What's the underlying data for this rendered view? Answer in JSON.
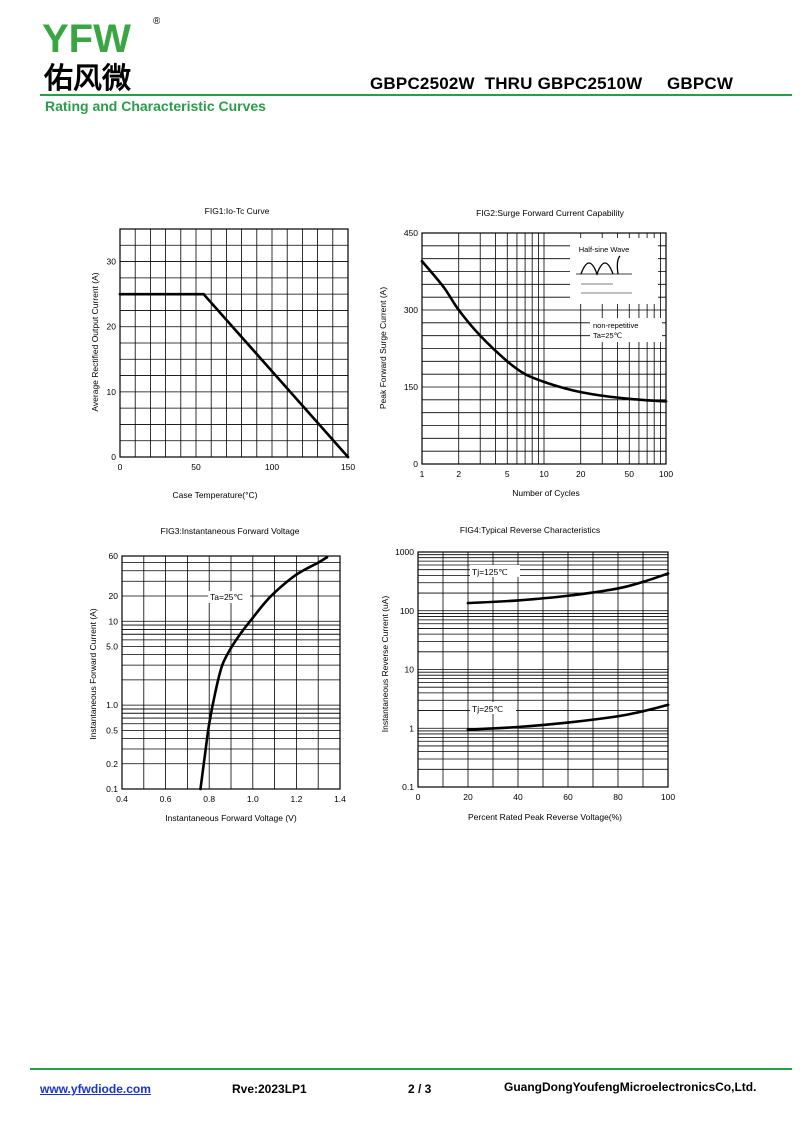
{
  "header": {
    "logo_latin": "YFW",
    "logo_chinese": "佑风微",
    "registered_mark": "®",
    "title": "GBPC2502W  THRU GBPC2510W     GBPCW",
    "section_title": "Rating and Characteristic Curves"
  },
  "colors": {
    "accent_green": "#2a9d4a",
    "logo_green": "#3aa641",
    "logo_orange": "#f39200",
    "link_blue": "#1a33cc",
    "grid": "#000000"
  },
  "figures": {
    "fig1": {
      "title": "FIG1:Io-Tc Curve",
      "xlabel": "Case Temperature(°C)",
      "ylabel": "Average Rectified Output Current (A)"
    },
    "fig2": {
      "title": "FIG2:Surge Forward Current Capability",
      "xlabel": "Number of Cycles",
      "ylabel": "Peak Forward Surge Current (A)",
      "inset_label": "Half-sine Wave",
      "note_line1": "non-repetitive",
      "note_line2": "Ta=25℃"
    },
    "fig3": {
      "title": "FIG3:Instantaneous Forward Voltage",
      "xlabel": "Instantaneous Forward Voltage (V)",
      "ylabel": "Instantaneous Forward Current (A)",
      "curve_label": "Ta=25℃"
    },
    "fig4": {
      "title": "FIG4:Typical Reverse Characteristics",
      "xlabel": "Percent Rated Peak Reverse Voltage(%)",
      "ylabel": "Instantaneous Reverse Current (uA)",
      "curve_label_hot": "Tj=125℃",
      "curve_label_cold": "Tj=25℃"
    }
  },
  "chart_data": [
    {
      "type": "line",
      "title": "FIG1:Io-Tc Curve",
      "xlabel": "Case Temperature(°C)",
      "ylabel": "Average Rectified Output Current (A)",
      "xlim": [
        0,
        150
      ],
      "ylim": [
        0,
        35
      ],
      "xticks": [
        "0",
        "50",
        "100",
        "150"
      ],
      "yticks": [
        "0",
        "10",
        "20",
        "30"
      ],
      "grid": true,
      "series": [
        {
          "x": [
            0,
            55,
            150
          ],
          "y": [
            25,
            25,
            0
          ]
        }
      ]
    },
    {
      "type": "line",
      "title": "FIG2:Surge Forward Current Capability",
      "xlabel": "Number of Cycles",
      "ylabel": "Peak Forward Surge Current (A)",
      "xscale": "log",
      "xlim": [
        1,
        100
      ],
      "ylim": [
        0,
        450
      ],
      "xticks": [
        "1",
        "2",
        "5",
        "10",
        "20",
        "50",
        "100"
      ],
      "yticks": [
        "0",
        "150",
        "300",
        "450"
      ],
      "grid": true,
      "series": [
        {
          "x": [
            1,
            1.5,
            2,
            3,
            5,
            7,
            10,
            15,
            20,
            30,
            50,
            70,
            100
          ],
          "y": [
            395,
            345,
            300,
            250,
            200,
            175,
            160,
            147,
            140,
            133,
            127,
            124,
            122
          ]
        }
      ]
    },
    {
      "type": "line",
      "title": "FIG3:Instantaneous Forward Voltage",
      "xlabel": "Instantaneous Forward Voltage (V)",
      "ylabel": "Instantaneous Forward Current (A)",
      "yscale": "log",
      "xlim": [
        0.4,
        1.4
      ],
      "ylim": [
        0.1,
        60
      ],
      "xticks": [
        "0.4",
        "0.6",
        "0.8",
        "1.0",
        "1.2",
        "1.4"
      ],
      "yticks": [
        "0.1",
        "0.2",
        "0.5",
        "1.0",
        "5.0",
        "10",
        "20",
        "60"
      ],
      "grid": true,
      "series": [
        {
          "x": [
            0.76,
            0.78,
            0.8,
            0.83,
            0.86,
            0.9,
            0.95,
            1.0,
            1.05,
            1.1,
            1.2,
            1.3,
            1.34
          ],
          "y": [
            0.1,
            0.25,
            0.6,
            1.5,
            3,
            4.8,
            7.5,
            11,
            16,
            22,
            36,
            50,
            58
          ]
        }
      ]
    },
    {
      "type": "line",
      "title": "FIG4:Typical Reverse Characteristics",
      "xlabel": "Percent Rated Peak Reverse Voltage(%)",
      "ylabel": "Instantaneous Reverse Current (uA)",
      "yscale": "log",
      "xlim": [
        0,
        100
      ],
      "ylim": [
        0.1,
        1000
      ],
      "xticks": [
        "0",
        "20",
        "40",
        "60",
        "80",
        "100"
      ],
      "yticks": [
        "0.1",
        "1",
        "10",
        "100",
        "1000"
      ],
      "grid": true,
      "series": [
        {
          "name": "Tj=125℃",
          "x": [
            20,
            40,
            60,
            80,
            90,
            100
          ],
          "y": [
            135,
            150,
            180,
            240,
            310,
            430
          ]
        },
        {
          "name": "Tj=25℃",
          "x": [
            20,
            40,
            60,
            80,
            90,
            100
          ],
          "y": [
            0.95,
            1.05,
            1.25,
            1.6,
            1.95,
            2.5
          ]
        }
      ]
    }
  ],
  "footer": {
    "link": "www.yfwdiode.com",
    "revision": "Rve:2023LP1",
    "page": "2 / 3",
    "company": "GuangDongYoufengMicroelectronicsCo,Ltd."
  }
}
